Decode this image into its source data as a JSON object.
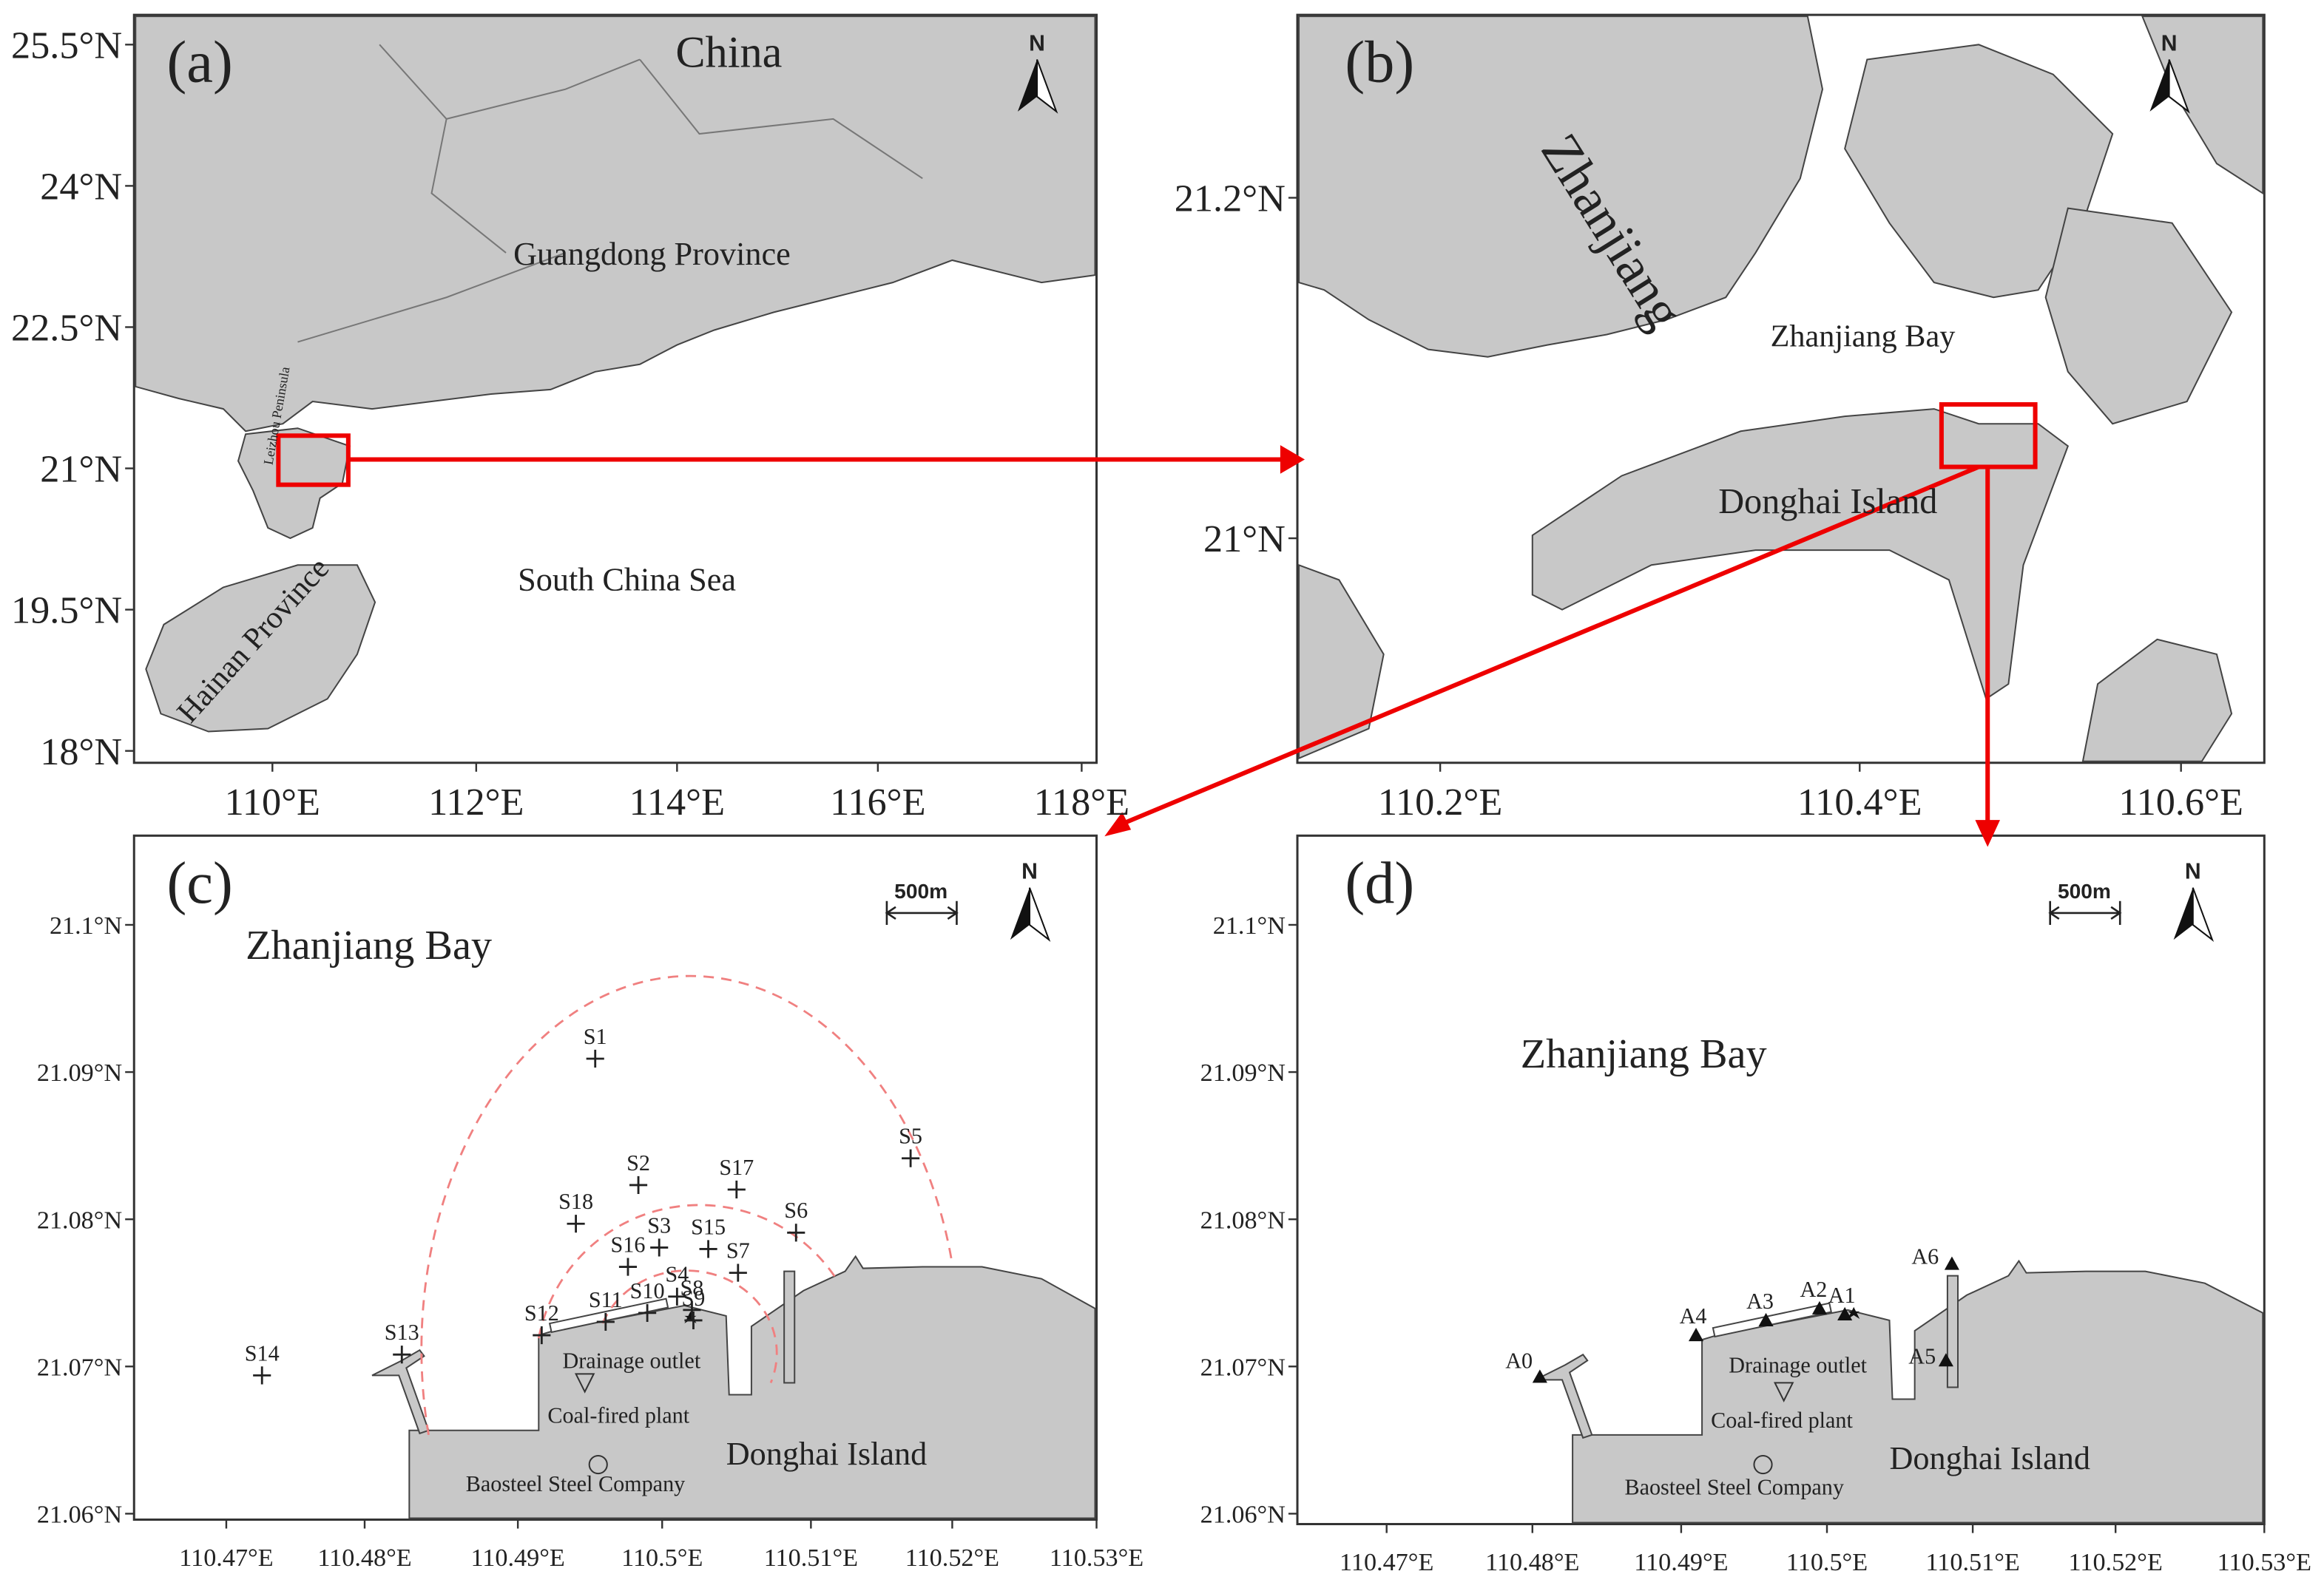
{
  "panels": [
    {
      "label": "(a)",
      "north": "N",
      "xticks": [
        "110°E",
        "112°E",
        "114°E",
        "116°E",
        "118°E"
      ],
      "yticks": [
        "25.5°N",
        "24°N",
        "22.5°N",
        "21°N",
        "19.5°N",
        "18°N"
      ],
      "places": [
        "China",
        "Guangdong Province",
        "South China Sea",
        "Hainan Province",
        "Leizhou Peninsula"
      ]
    },
    {
      "label": "(b)",
      "north": "N",
      "xticks": [
        "110.2°E",
        "110.4°E",
        "110.6°E"
      ],
      "yticks": [
        "21.2°N",
        "21°N"
      ],
      "places": [
        "Zhanjiang",
        "Zhanjiang Bay",
        "Donghai Island"
      ]
    },
    {
      "label": "(c)",
      "north": "N",
      "scale": "500m",
      "xticks": [
        "110.47°E",
        "110.48°E",
        "110.49°E",
        "110.5°E",
        "110.51°E",
        "110.52°E",
        "110.53°E"
      ],
      "yticks": [
        "21.1°N",
        "21.09°N",
        "21.08°N",
        "21.07°N",
        "21.06°N"
      ],
      "places": [
        "Zhanjiang Bay",
        "Donghai Island",
        "Drainage outlet",
        "Coal-fired plant",
        "Baosteel Steel Company"
      ],
      "stations": [
        "S1",
        "S2",
        "S17",
        "S5",
        "S18",
        "S6",
        "S3",
        "S16",
        "S15",
        "S7",
        "S4",
        "S8",
        "S10",
        "S9",
        "S12",
        "S11",
        "S13",
        "S14"
      ]
    },
    {
      "label": "(d)",
      "north": "N",
      "scale": "500m",
      "xticks": [
        "110.47°E",
        "110.48°E",
        "110.49°E",
        "110.5°E",
        "110.51°E",
        "110.52°E",
        "110.53°E"
      ],
      "yticks": [
        "21.1°N",
        "21.09°N",
        "21.08°N",
        "21.07°N",
        "21.06°N"
      ],
      "places": [
        "Zhanjiang Bay",
        "Donghai Island",
        "Drainage outlet",
        "Coal-fired plant",
        "Baosteel Steel Company"
      ],
      "stations": [
        "A0",
        "A1",
        "A2",
        "A3",
        "A4",
        "A5",
        "A6"
      ]
    }
  ]
}
